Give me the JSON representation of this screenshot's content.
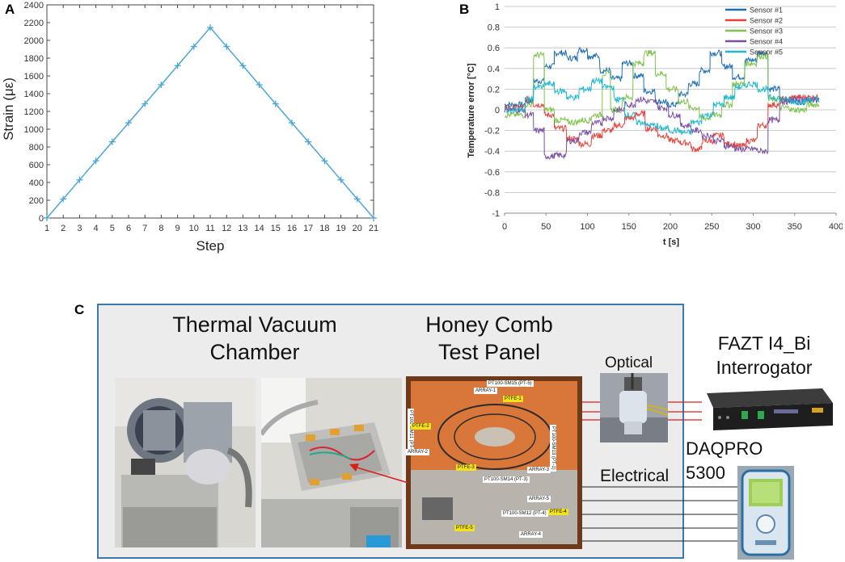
{
  "panels": {
    "a": "A",
    "b": "B",
    "c": "C"
  },
  "chart_data": [
    {
      "type": "line",
      "title": "",
      "xlabel": "Step",
      "ylabel": "Strain (με)",
      "x": [
        1,
        2,
        3,
        4,
        5,
        6,
        7,
        8,
        9,
        10,
        11,
        12,
        13,
        14,
        15,
        16,
        17,
        18,
        19,
        20,
        21
      ],
      "series": [
        {
          "values": [
            0,
            214,
            429,
            643,
            858,
            1072,
            1286,
            1500,
            1715,
            1930,
            2145,
            1930,
            1715,
            1500,
            1286,
            1072,
            858,
            643,
            429,
            214,
            0
          ]
        }
      ],
      "xlim": [
        1,
        21
      ],
      "ylim": [
        0,
        2400
      ],
      "xticks": [
        1,
        2,
        3,
        4,
        5,
        6,
        7,
        8,
        9,
        10,
        11,
        12,
        13,
        14,
        15,
        16,
        17,
        18,
        19,
        20,
        21
      ],
      "yticks": [
        0,
        200,
        400,
        600,
        800,
        1000,
        1200,
        1400,
        1600,
        1800,
        2000,
        2200,
        2400
      ],
      "marker": "plus",
      "grid": false,
      "colors": {
        "line": "#4aa6d6"
      }
    },
    {
      "type": "line",
      "title": "",
      "xlabel": "t [s]",
      "ylabel": "Temperature error [°C]",
      "xlim": [
        0,
        400
      ],
      "ylim": [
        -1,
        1
      ],
      "xticks": [
        0,
        50,
        100,
        150,
        200,
        250,
        300,
        350,
        400
      ],
      "yticks": [
        -1,
        -0.8,
        -0.6,
        -0.4,
        -0.2,
        0,
        0.2,
        0.4,
        0.6,
        0.8,
        1
      ],
      "ytick_labels": [
        "-1",
        "-0.8",
        "-0.6",
        "-0.4",
        "-0.2",
        "0",
        "0.2",
        "0.4",
        "0.6",
        "0.8",
        "1"
      ],
      "grid": true,
      "legend_position": "top-right",
      "series": [
        {
          "name": "Sensor #1",
          "color": "#1f6eb4",
          "steps": [
            [
              0,
              0.05
            ],
            [
              25,
              0.08
            ],
            [
              35,
              0.28
            ],
            [
              48,
              0.42
            ],
            [
              60,
              0.55
            ],
            [
              75,
              0.5
            ],
            [
              88,
              0.58
            ],
            [
              100,
              0.52
            ],
            [
              115,
              0.38
            ],
            [
              128,
              0.3
            ],
            [
              142,
              0.45
            ],
            [
              155,
              0.33
            ],
            [
              168,
              0.18
            ],
            [
              182,
              0.08
            ],
            [
              195,
              0.05
            ],
            [
              210,
              0.15
            ],
            [
              222,
              0.25
            ],
            [
              235,
              0.38
            ],
            [
              248,
              0.55
            ],
            [
              262,
              0.42
            ],
            [
              275,
              0.32
            ],
            [
              290,
              0.48
            ],
            [
              305,
              0.55
            ],
            [
              318,
              0.2
            ],
            [
              332,
              0.1
            ],
            [
              345,
              0.08
            ],
            [
              365,
              0.1
            ],
            [
              380,
              0.1
            ]
          ]
        },
        {
          "name": "Sensor #2",
          "color": "#e8413a",
          "steps": [
            [
              0,
              0.02
            ],
            [
              25,
              0.1
            ],
            [
              35,
              0.05
            ],
            [
              48,
              -0.05
            ],
            [
              60,
              -0.18
            ],
            [
              75,
              -0.28
            ],
            [
              90,
              -0.33
            ],
            [
              105,
              -0.25
            ],
            [
              118,
              -0.2
            ],
            [
              132,
              -0.15
            ],
            [
              145,
              -0.08
            ],
            [
              158,
              -0.04
            ],
            [
              170,
              -0.18
            ],
            [
              185,
              -0.25
            ],
            [
              198,
              -0.3
            ],
            [
              212,
              -0.32
            ],
            [
              225,
              -0.38
            ],
            [
              238,
              -0.3
            ],
            [
              252,
              -0.25
            ],
            [
              265,
              -0.33
            ],
            [
              278,
              -0.35
            ],
            [
              292,
              -0.3
            ],
            [
              305,
              -0.15
            ],
            [
              318,
              0.05
            ],
            [
              332,
              0.1
            ],
            [
              345,
              0.12
            ],
            [
              365,
              0.12
            ],
            [
              380,
              0.12
            ]
          ]
        },
        {
          "name": "Sensor #3",
          "color": "#7ec34c",
          "steps": [
            [
              0,
              -0.05
            ],
            [
              25,
              0.05
            ],
            [
              35,
              0.53
            ],
            [
              48,
              0.0
            ],
            [
              60,
              -0.1
            ],
            [
              75,
              -0.12
            ],
            [
              90,
              -0.1
            ],
            [
              105,
              -0.05
            ],
            [
              118,
              0.35
            ],
            [
              128,
              0.0
            ],
            [
              142,
              0.12
            ],
            [
              155,
              0.45
            ],
            [
              168,
              0.55
            ],
            [
              182,
              0.35
            ],
            [
              195,
              0.2
            ],
            [
              210,
              0.08
            ],
            [
              222,
              0.02
            ],
            [
              235,
              -0.08
            ],
            [
              248,
              -0.05
            ],
            [
              262,
              0.05
            ],
            [
              275,
              0.25
            ],
            [
              290,
              0.45
            ],
            [
              305,
              0.52
            ],
            [
              318,
              0.1
            ],
            [
              332,
              0.02
            ],
            [
              345,
              0.0
            ],
            [
              365,
              0.05
            ],
            [
              380,
              0.05
            ]
          ]
        },
        {
          "name": "Sensor #4",
          "color": "#7a4fa3",
          "steps": [
            [
              0,
              0.0
            ],
            [
              25,
              -0.05
            ],
            [
              35,
              -0.2
            ],
            [
              48,
              -0.45
            ],
            [
              60,
              -0.44
            ],
            [
              75,
              -0.3
            ],
            [
              90,
              -0.22
            ],
            [
              105,
              -0.13
            ],
            [
              118,
              -0.08
            ],
            [
              132,
              0.0
            ],
            [
              145,
              0.05
            ],
            [
              158,
              0.1
            ],
            [
              170,
              0.08
            ],
            [
              185,
              0.02
            ],
            [
              198,
              -0.05
            ],
            [
              212,
              -0.15
            ],
            [
              225,
              -0.2
            ],
            [
              238,
              -0.25
            ],
            [
              252,
              -0.3
            ],
            [
              265,
              -0.35
            ],
            [
              278,
              -0.38
            ],
            [
              292,
              -0.38
            ],
            [
              305,
              -0.4
            ],
            [
              318,
              -0.1
            ],
            [
              332,
              0.08
            ],
            [
              345,
              0.1
            ],
            [
              365,
              0.1
            ],
            [
              380,
              0.1
            ]
          ]
        },
        {
          "name": "Sensor #5",
          "color": "#1cb8cf",
          "steps": [
            [
              0,
              0.0
            ],
            [
              25,
              0.1
            ],
            [
              35,
              0.22
            ],
            [
              48,
              0.25
            ],
            [
              60,
              0.18
            ],
            [
              75,
              0.12
            ],
            [
              90,
              0.2
            ],
            [
              105,
              0.28
            ],
            [
              118,
              0.22
            ],
            [
              132,
              0.1
            ],
            [
              145,
              -0.05
            ],
            [
              158,
              -0.12
            ],
            [
              170,
              -0.15
            ],
            [
              185,
              -0.18
            ],
            [
              198,
              -0.2
            ],
            [
              212,
              -0.22
            ],
            [
              225,
              -0.12
            ],
            [
              238,
              -0.05
            ],
            [
              252,
              0.05
            ],
            [
              265,
              0.12
            ],
            [
              278,
              0.22
            ],
            [
              292,
              0.25
            ],
            [
              305,
              0.2
            ],
            [
              318,
              0.12
            ],
            [
              332,
              0.1
            ],
            [
              345,
              0.08
            ],
            [
              365,
              0.1
            ],
            [
              380,
              0.08
            ]
          ]
        }
      ]
    }
  ],
  "panel_c": {
    "thermal_vacuum_label": "Thermal Vacuum\nChamber",
    "honey_comb_label": "Honey Comb\nTest Panel",
    "optical_label": "Optical",
    "fazt_label": "FAZT I4_Bi\nInterrogator",
    "daqpro_label": "DAQPRO\n5300",
    "electrical_label": "Electrical",
    "panel_tags": {
      "pt5": "PT100-SM15 (PT-5)",
      "array1": "ARRAY-1",
      "ptfe1": "PTFE-1",
      "pt2": "PT100-SM11 (PT-2)",
      "ptfe2": "PTFE-2",
      "array2": "ARRAY-2",
      "ptfe3": "PTFE-3",
      "array3": "ARRAY-3",
      "pt3": "PT100-SM14 (PT-3)",
      "array5": "ARRAY-5",
      "pt4": "PT100-SM12 (PT-4)",
      "ptfe4": "PTFE-4",
      "ptfe5": "PTFE-5",
      "array4": "ARRAY-4",
      "pt1": "PT100-SM13 (PT-1)"
    },
    "colors": {
      "frame": "#3b78ad",
      "optical_line": "#d62020",
      "electrical_line": "#222222",
      "tag_yellow": "#f3e21a"
    }
  }
}
